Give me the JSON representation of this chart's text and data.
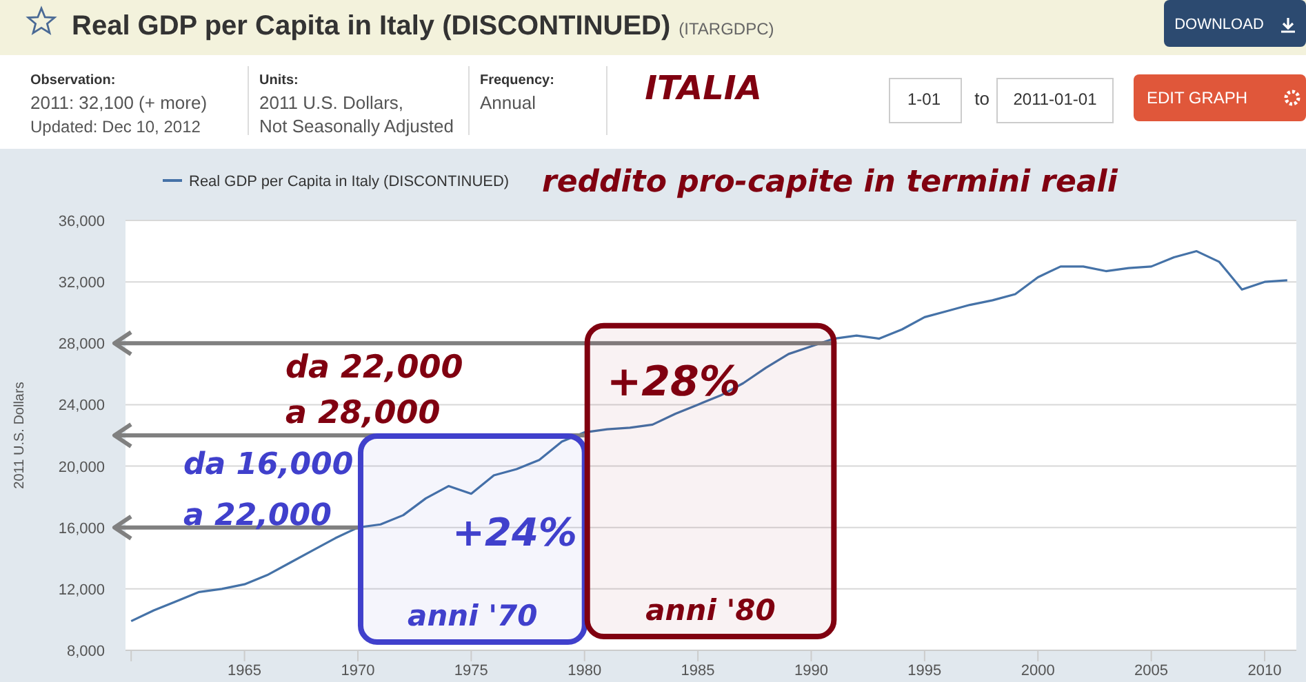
{
  "chart_data": {
    "type": "line",
    "title": "Real GDP per Capita in Italy (DISCONTINUED)",
    "subtitle": "(ITARGDPC)",
    "ylabel": "2011 U.S. Dollars",
    "x": [
      1960,
      1961,
      1962,
      1963,
      1964,
      1965,
      1966,
      1967,
      1968,
      1969,
      1970,
      1971,
      1972,
      1973,
      1974,
      1975,
      1976,
      1977,
      1978,
      1979,
      1980,
      1981,
      1982,
      1983,
      1984,
      1985,
      1986,
      1987,
      1988,
      1989,
      1990,
      1991,
      1992,
      1993,
      1994,
      1995,
      1996,
      1997,
      1998,
      1999,
      2000,
      2001,
      2002,
      2003,
      2004,
      2005,
      2006,
      2007,
      2008,
      2009,
      2010,
      2011
    ],
    "series": [
      {
        "name": "Real GDP per Capita in Italy (DISCONTINUED)",
        "color": "#4572a7",
        "values": [
          9900,
          10600,
          11200,
          11800,
          12000,
          12300,
          12900,
          13700,
          14500,
          15300,
          16000,
          16200,
          16800,
          17900,
          18700,
          18200,
          19400,
          19800,
          20400,
          21600,
          22200,
          22400,
          22500,
          22700,
          23400,
          24000,
          24600,
          25400,
          26400,
          27300,
          27800,
          28300,
          28500,
          28300,
          28900,
          29700,
          30100,
          30500,
          30800,
          31200,
          32300,
          33000,
          33000,
          32700,
          32900,
          33000,
          33600,
          34000,
          33300,
          31500,
          32000,
          32100
        ]
      }
    ],
    "xlim": [
      1959.75,
      2011.4
    ],
    "xticks": [
      {
        "value": 1960,
        "label": null
      },
      1965,
      1970,
      1975,
      1980,
      1985,
      1990,
      1995,
      2000,
      2005,
      2010
    ],
    "ylim": [
      8000,
      36000
    ],
    "yticks": [
      {
        "value": 8000,
        "label": "8,000"
      },
      {
        "value": 12000,
        "label": "12,000"
      },
      {
        "value": 16000,
        "label": "16,000"
      },
      {
        "value": 20000,
        "label": "20,000"
      },
      {
        "value": 24000,
        "label": "24,000"
      },
      {
        "value": 28000,
        "label": "28,000"
      },
      {
        "value": 32000,
        "label": "32,000"
      },
      {
        "value": 36000,
        "label": "36,000"
      }
    ],
    "grid": "y",
    "legend": "top left",
    "marker": "none",
    "line_style": "solid",
    "ref_lines": [
      {
        "axis": "y",
        "value": 28000,
        "color": "#808080"
      },
      {
        "axis": "y",
        "value": 22000,
        "color": "#808080"
      },
      {
        "axis": "y",
        "value": 16000,
        "color": "#808080"
      }
    ],
    "bands": [
      {
        "axis": "x",
        "from": 1970,
        "to": 1980,
        "label": "anni '70",
        "color": "#4040cc"
      },
      {
        "axis": "x",
        "from": 1980,
        "to": 1991,
        "label": "anni '80",
        "color": "#800010"
      }
    ],
    "annotations": [
      "Observation:",
      "2011: 32,100 (+ more)",
      "Updated: Dec 10, 2012",
      "Units:",
      "2011 U.S. Dollars,",
      "Not Seasonally Adjusted",
      "Frequency:",
      "Annual",
      "ITALIA",
      "1-01",
      "to",
      "2011-01-01",
      "DOWNLOAD",
      "EDIT GRAPH",
      "reddito pro-capite in termini reali",
      "da 22,000",
      "a 28,000",
      "da 16,000",
      "a 22,000",
      "+28%",
      "+24%"
    ]
  }
}
